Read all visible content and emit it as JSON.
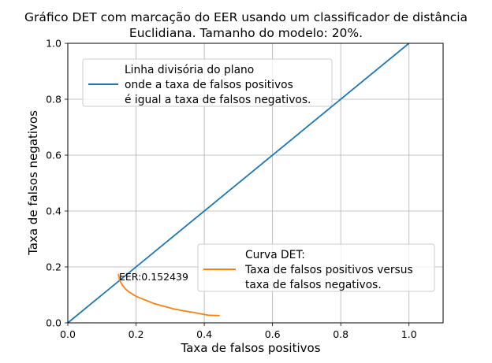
{
  "chart_data": {
    "type": "line",
    "title_line1": "Gráfico DET com marcação do EER usando um classificador de distância",
    "title_line2": "Euclidiana. Tamanho do modelo: 20%.",
    "xlabel": "Taxa de falsos positivos",
    "ylabel": "Taxa de falsos negativos",
    "xlim": [
      0.0,
      1.1
    ],
    "ylim": [
      0.0,
      1.0
    ],
    "xticks": [
      "0.0",
      "0.2",
      "0.4",
      "0.6",
      "0.8",
      "1.0"
    ],
    "yticks": [
      "0.0",
      "0.2",
      "0.4",
      "0.6",
      "0.8",
      "1.0"
    ],
    "grid": true,
    "series": [
      {
        "name": "Linha divisória do plano\nonde a taxa de falsos positivos\né igual a taxa de falsos negativos.",
        "color": "#1f77b4",
        "x": [
          0.0,
          1.0
        ],
        "y": [
          0.0,
          1.0
        ]
      },
      {
        "name": "Curva DET:\nTaxa de falsos positivos versus\ntaxa de falsos negativos.",
        "color": "#ff7f0e",
        "x": [
          0.148,
          0.15,
          0.152,
          0.155,
          0.16,
          0.17,
          0.18,
          0.2,
          0.22,
          0.25,
          0.28,
          0.31,
          0.34,
          0.37,
          0.4,
          0.41,
          0.42,
          0.445
        ],
        "y": [
          0.175,
          0.165,
          0.152,
          0.145,
          0.135,
          0.12,
          0.11,
          0.095,
          0.085,
          0.07,
          0.06,
          0.05,
          0.043,
          0.037,
          0.03,
          0.028,
          0.027,
          0.026
        ]
      }
    ],
    "legends": [
      {
        "position": "upper-left",
        "series_index": 0,
        "lines": [
          "Linha divisória do plano",
          "onde a taxa de falsos positivos",
          "é igual a taxa de falsos negativos."
        ]
      },
      {
        "position": "lower-right",
        "series_index": 1,
        "lines": [
          "Curva DET:",
          "Taxa de falsos positivos versus",
          "taxa de falsos negativos."
        ]
      }
    ],
    "annotations": [
      {
        "text": "EER:0.152439",
        "x": 0.152439,
        "y": 0.152439
      }
    ]
  }
}
